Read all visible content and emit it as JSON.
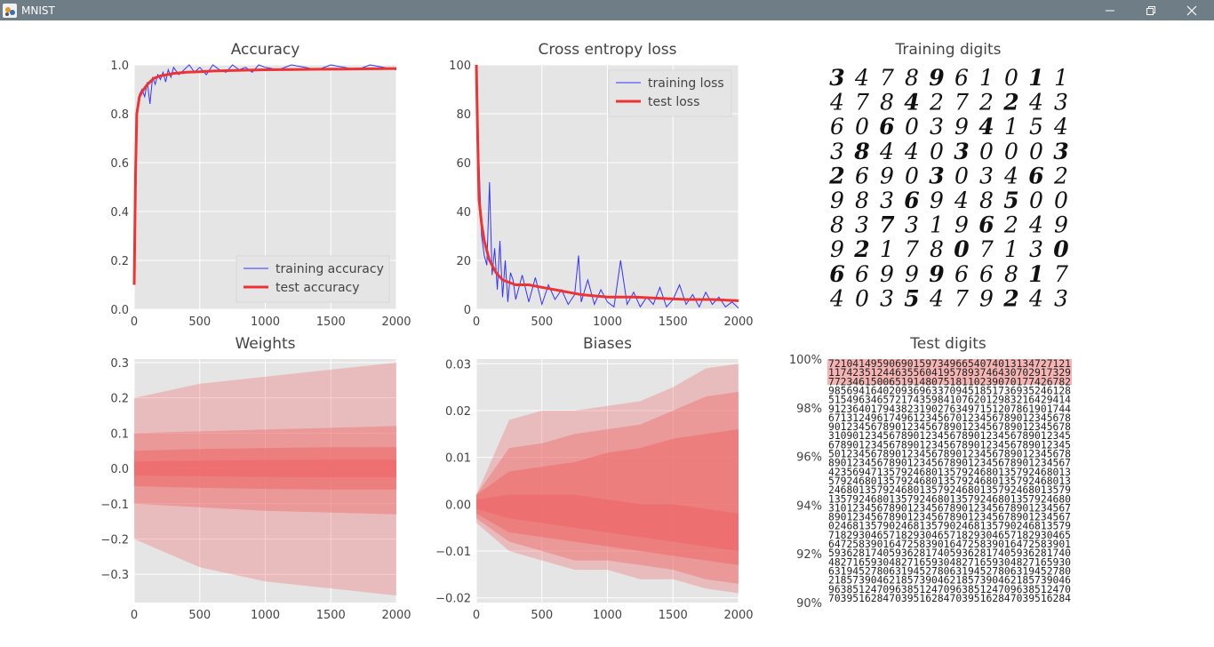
{
  "window": {
    "title": "MNIST",
    "icon": "mnist-app-icon",
    "controls": [
      "minimize-icon",
      "restore-icon",
      "close-icon"
    ]
  },
  "chart_data": [
    {
      "type": "line",
      "title": "Accuracy",
      "xlim": [
        0,
        2000
      ],
      "ylim": [
        0,
        1.0
      ],
      "xticks": [
        "0",
        "500",
        "1000",
        "1500",
        "2000"
      ],
      "yticks": [
        "0.0",
        "0.2",
        "0.4",
        "0.6",
        "0.8",
        "1.0"
      ],
      "legend": "bottom-right",
      "grid": true,
      "series": [
        {
          "name": "training accuracy",
          "color": "#3333ff",
          "x": [
            0,
            20,
            40,
            60,
            80,
            100,
            120,
            140,
            160,
            180,
            200,
            220,
            240,
            260,
            280,
            300,
            340,
            380,
            420,
            460,
            500,
            550,
            600,
            650,
            700,
            750,
            800,
            850,
            900,
            950,
            1000,
            1100,
            1200,
            1300,
            1400,
            1500,
            1600,
            1700,
            1800,
            1900,
            2000
          ],
          "y": [
            0.1,
            0.82,
            0.88,
            0.9,
            0.87,
            0.93,
            0.84,
            0.95,
            0.92,
            0.96,
            0.94,
            0.97,
            0.93,
            0.98,
            0.95,
            0.99,
            0.96,
            0.98,
            1.0,
            0.97,
            0.99,
            0.96,
            1.0,
            0.98,
            0.97,
            1.0,
            0.98,
            0.99,
            0.97,
            1.0,
            0.99,
            0.98,
            1.0,
            0.99,
            0.98,
            1.0,
            0.99,
            0.98,
            1.0,
            0.99,
            0.98
          ]
        },
        {
          "name": "test accuracy",
          "color": "#ee3333",
          "x": [
            0,
            10,
            20,
            40,
            60,
            80,
            100,
            150,
            200,
            300,
            400,
            500,
            600,
            800,
            1000,
            1200,
            1400,
            1600,
            1800,
            2000
          ],
          "y": [
            0.1,
            0.55,
            0.8,
            0.87,
            0.89,
            0.905,
            0.92,
            0.945,
            0.955,
            0.965,
            0.97,
            0.972,
            0.975,
            0.978,
            0.98,
            0.981,
            0.982,
            0.983,
            0.984,
            0.985
          ]
        }
      ]
    },
    {
      "type": "line",
      "title": "Cross entropy loss",
      "xlim": [
        0,
        2000
      ],
      "ylim": [
        0,
        100
      ],
      "xticks": [
        "0",
        "500",
        "1000",
        "1500",
        "2000"
      ],
      "yticks": [
        "0",
        "20",
        "40",
        "60",
        "80",
        "100"
      ],
      "legend": "top-right",
      "grid": true,
      "series": [
        {
          "name": "training loss",
          "color": "#3333ff",
          "x": [
            0,
            20,
            40,
            60,
            80,
            100,
            120,
            140,
            160,
            180,
            200,
            220,
            240,
            260,
            280,
            300,
            350,
            400,
            450,
            500,
            550,
            600,
            650,
            700,
            750,
            780,
            800,
            850,
            900,
            950,
            1000,
            1050,
            1100,
            1150,
            1200,
            1250,
            1300,
            1350,
            1400,
            1450,
            1500,
            1550,
            1600,
            1650,
            1700,
            1750,
            1800,
            1850,
            1900,
            1950,
            2000
          ],
          "y": [
            100,
            60,
            30,
            22,
            18,
            52,
            14,
            25,
            8,
            28,
            5,
            20,
            3,
            15,
            12,
            4,
            14,
            3,
            13,
            2,
            10,
            4,
            8,
            2,
            6,
            22,
            3,
            12,
            2,
            8,
            3,
            1,
            20,
            2,
            7,
            1,
            5,
            2,
            9,
            1,
            4,
            10,
            2,
            6,
            1,
            7,
            2,
            5,
            1,
            3,
            0.5
          ]
        },
        {
          "name": "test loss",
          "color": "#ee3333",
          "x": [
            0,
            10,
            20,
            40,
            60,
            80,
            100,
            150,
            200,
            300,
            400,
            500,
            600,
            700,
            800,
            1000,
            1200,
            1400,
            1600,
            1800,
            2000
          ],
          "y": [
            100,
            70,
            45,
            35,
            28,
            24,
            20,
            15,
            12,
            10,
            10,
            9,
            8,
            7,
            6,
            5,
            5,
            4.5,
            4,
            4,
            3.5
          ]
        }
      ]
    },
    {
      "type": "area",
      "title": "Weights",
      "xlim": [
        0,
        2000
      ],
      "ylim": [
        -0.38,
        0.31
      ],
      "xticks": [
        "0",
        "500",
        "1000",
        "1500",
        "2000"
      ],
      "yticks": [
        "0.3",
        "0.2",
        "0.1",
        "0.0",
        "−0.1",
        "−0.2",
        "−0.3"
      ],
      "grid": true,
      "color": "#ee6666",
      "series": [
        {
          "x": [
            0,
            500,
            1000,
            1500,
            2000
          ],
          "low": [
            -0.2,
            -0.28,
            -0.32,
            -0.34,
            -0.36
          ],
          "high": [
            0.2,
            0.24,
            0.26,
            0.28,
            0.3
          ]
        },
        {
          "x": [
            0,
            500,
            1000,
            1500,
            2000
          ],
          "low": [
            -0.1,
            -0.11,
            -0.12,
            -0.125,
            -0.13
          ],
          "high": [
            0.1,
            0.105,
            0.11,
            0.115,
            0.12
          ]
        },
        {
          "x": [
            0,
            500,
            1000,
            1500,
            2000
          ],
          "low": [
            -0.05,
            -0.055,
            -0.058,
            -0.06,
            -0.06
          ],
          "high": [
            0.05,
            0.055,
            0.058,
            0.06,
            0.06
          ]
        },
        {
          "x": [
            0,
            500,
            1000,
            1500,
            2000
          ],
          "low": [
            -0.02,
            -0.022,
            -0.024,
            -0.025,
            -0.025
          ],
          "high": [
            0.02,
            0.022,
            0.024,
            0.025,
            0.025
          ]
        }
      ]
    },
    {
      "type": "area",
      "title": "Biases",
      "xlim": [
        0,
        2000
      ],
      "ylim": [
        -0.021,
        0.031
      ],
      "xticks": [
        "0",
        "500",
        "1000",
        "1500",
        "2000"
      ],
      "yticks": [
        "0.03",
        "0.02",
        "0.01",
        "0.00",
        "−0.01",
        "−0.02"
      ],
      "grid": true,
      "color": "#ee6666",
      "series": [
        {
          "x": [
            0,
            250,
            500,
            750,
            1000,
            1250,
            1500,
            1750,
            2000
          ],
          "low": [
            -0.004,
            -0.01,
            -0.012,
            -0.014,
            -0.014,
            -0.016,
            -0.016,
            -0.018,
            -0.019
          ],
          "high": [
            0.002,
            0.018,
            0.02,
            0.02,
            0.021,
            0.022,
            0.025,
            0.029,
            0.03
          ]
        },
        {
          "x": [
            0,
            250,
            500,
            750,
            1000,
            1250,
            1500,
            1750,
            2000
          ],
          "low": [
            -0.003,
            -0.008,
            -0.01,
            -0.012,
            -0.012,
            -0.013,
            -0.014,
            -0.016,
            -0.017
          ],
          "high": [
            0.002,
            0.012,
            0.013,
            0.015,
            0.016,
            0.017,
            0.02,
            0.023,
            0.024
          ]
        },
        {
          "x": [
            0,
            250,
            500,
            750,
            1000,
            1250,
            1500,
            1750,
            2000
          ],
          "low": [
            -0.002,
            -0.006,
            -0.007,
            -0.008,
            -0.009,
            -0.01,
            -0.011,
            -0.012,
            -0.013
          ],
          "high": [
            0.002,
            0.007,
            0.008,
            0.009,
            0.011,
            0.012,
            0.014,
            0.015,
            0.016
          ]
        },
        {
          "x": [
            0,
            250,
            500,
            750,
            1000,
            1250,
            1500,
            1750,
            2000
          ],
          "low": [
            -0.001,
            -0.003,
            -0.004,
            -0.005,
            -0.006,
            -0.007,
            -0.008,
            -0.009,
            -0.01
          ],
          "high": [
            0.001,
            0.002,
            0.002,
            0.002,
            0.001,
            0.0,
            0.0,
            -0.001,
            -0.002
          ]
        }
      ]
    }
  ],
  "training_digits": {
    "title": "Training digits",
    "rows": [
      "3478961011",
      "4784272243",
      "6060394154",
      "3844030003",
      "2690303462",
      "9836948500",
      "8373196249",
      "9217807130",
      "6699966817",
      "4035479243"
    ]
  },
  "test_digits": {
    "title": "Test digits",
    "yticks": [
      "100%",
      "98%",
      "96%",
      "94%",
      "92%",
      "90%"
    ],
    "highlight_color": "#f4b4b4",
    "rows": [
      "7210414959069015973496654074013134727121",
      "1174235124463556041957893746430702917329",
      "7723461500651914807518110239070177426782",
      "9856941640209369633709451851736935246128",
      "5154963465721743598410762012983216429414",
      "9123640179438231902763497151207861901744",
      "6713124961749612345670123456789012345678",
      "9012345678901234567890123456789012345678",
      "3109012345678901234567890123456789012345",
      "6789012345678901234567890123456789012345",
      "5012345678901234567890123456789012345678",
      "8901234567890123456789012345678901234567",
      "4235694713579246801357924680135792468013",
      "5792468013579246801357924680135792468013",
      "2468013579246801357924680135792468013579",
      "1357924680135792468013579246801357924680",
      "3101234567890123456789012345678901234567",
      "8901234567890123456789012345678901234567",
      "0246813579024681357902468135790246813579",
      "7182930465718293046571829304657182930465",
      "6472583901647258390164725839016472583901",
      "5936281740593628174059362817405936281740",
      "4827165930482716593048271659304827165930",
      "6319452780631945278063194527806319452780",
      "2185739046218573904621857390462185739046",
      "9638512470963851247096385124709638512470",
      "7039516284703951628470395162847039516284"
    ]
  }
}
